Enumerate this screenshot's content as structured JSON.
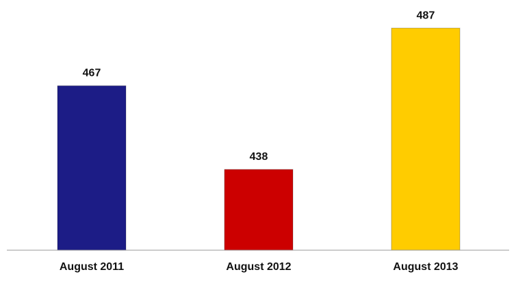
{
  "chart_data": {
    "type": "bar",
    "categories": [
      "August 2011",
      "August 2012",
      "August 2013"
    ],
    "values": [
      467,
      438,
      487
    ],
    "colors": [
      "#1c1c86",
      "#cc0000",
      "#ffcc00"
    ],
    "ylim": [
      410,
      492
    ]
  }
}
